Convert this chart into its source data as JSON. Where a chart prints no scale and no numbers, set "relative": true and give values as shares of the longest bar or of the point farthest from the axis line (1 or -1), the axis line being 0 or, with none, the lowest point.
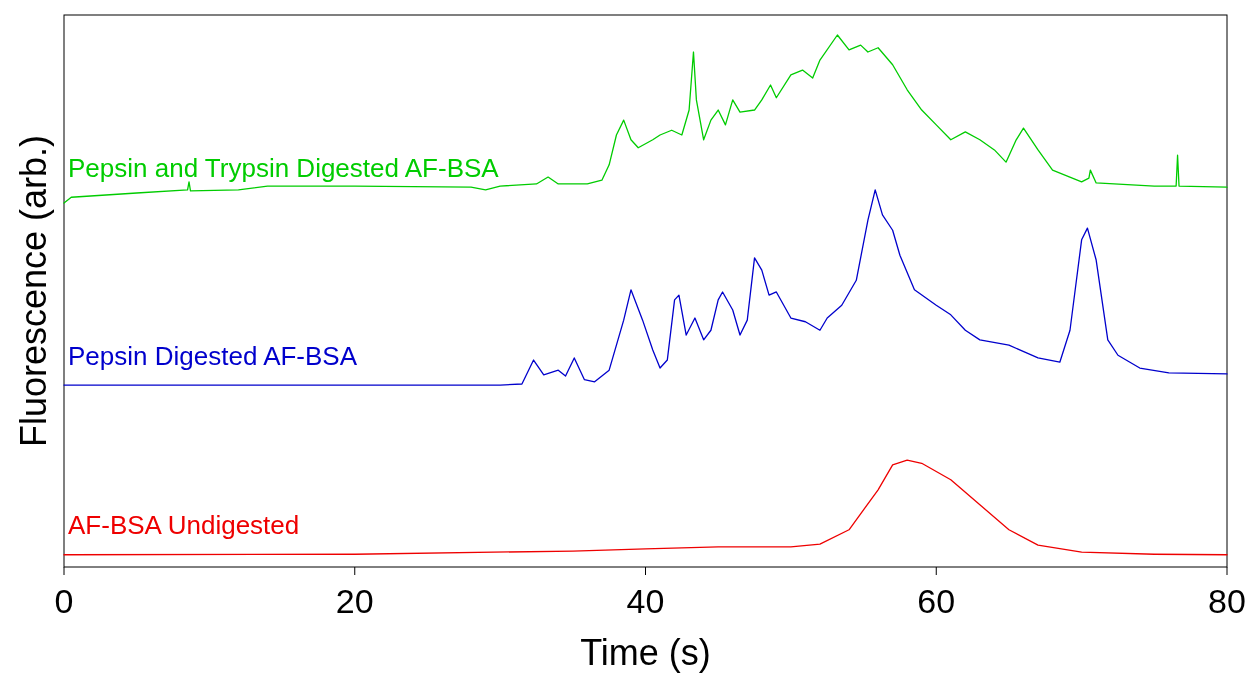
{
  "chart_data": {
    "type": "line",
    "relative": true,
    "xlabel": "Time (s)",
    "ylabel": "Fluorescence (arb.)",
    "xlim": [
      0,
      80
    ],
    "xticks": [
      0,
      20,
      40,
      60,
      80
    ],
    "series": [
      {
        "name": "Pepsin and Trypsin Digested AF-BSA",
        "color": "#00cc00",
        "x": [
          0,
          0.5,
          5,
          8.5,
          8.6,
          8.7,
          12,
          14,
          20,
          28,
          29,
          30,
          32.5,
          33.3,
          34,
          36,
          37,
          37.5,
          38,
          38.5,
          39,
          39.5,
          40.5,
          41,
          41.8,
          42.5,
          43,
          43.3,
          43.5,
          44,
          44.5,
          45,
          45.5,
          46,
          46.5,
          47.5,
          48,
          48.6,
          49,
          50,
          50.8,
          51.5,
          52,
          53.2,
          54,
          54.8,
          55.3,
          56,
          57,
          58,
          59,
          60,
          61,
          62,
          63,
          64,
          64.8,
          65.5,
          66,
          67,
          68,
          70,
          70.5,
          70.6,
          71,
          75,
          76.5,
          76.6,
          76.7,
          80
        ],
        "values": [
          0.684,
          0.695,
          0.703,
          0.709,
          0.724,
          0.707,
          0.709,
          0.716,
          0.716,
          0.714,
          0.709,
          0.716,
          0.72,
          0.733,
          0.72,
          0.72,
          0.727,
          0.756,
          0.812,
          0.84,
          0.803,
          0.788,
          0.803,
          0.812,
          0.821,
          0.812,
          0.859,
          0.968,
          0.878,
          0.803,
          0.84,
          0.859,
          0.831,
          0.878,
          0.855,
          0.859,
          0.878,
          0.906,
          0.882,
          0.925,
          0.934,
          0.919,
          0.953,
          1,
          0.972,
          0.981,
          0.968,
          0.976,
          0.944,
          0.897,
          0.859,
          0.831,
          0.803,
          0.818,
          0.803,
          0.784,
          0.761,
          0.803,
          0.825,
          0.784,
          0.746,
          0.724,
          0.731,
          0.746,
          0.722,
          0.716,
          0.716,
          0.774,
          0.716,
          0.714
        ]
      },
      {
        "name": "Pepsin Digested AF-BSA",
        "color": "#0000cc",
        "x": [
          0,
          30,
          31.5,
          32.3,
          33,
          34,
          34.5,
          35.1,
          35.8,
          36.5,
          37.5,
          38.5,
          39,
          39.8,
          40.5,
          41,
          41.5,
          42,
          42.3,
          42.8,
          43.4,
          44,
          44.5,
          45,
          45.3,
          46,
          46.5,
          47,
          47.5,
          48,
          48.5,
          49,
          50,
          51,
          52,
          52.5,
          53.5,
          54.5,
          55.3,
          55.8,
          56.3,
          57,
          57.5,
          58.5,
          60,
          61,
          62,
          63,
          65,
          67,
          68.5,
          69.2,
          70,
          70.4,
          71,
          71.8,
          72.5,
          74,
          76,
          80
        ],
        "values": [
          0.342,
          0.342,
          0.344,
          0.389,
          0.361,
          0.37,
          0.359,
          0.393,
          0.352,
          0.348,
          0.37,
          0.464,
          0.521,
          0.464,
          0.408,
          0.374,
          0.389,
          0.502,
          0.511,
          0.436,
          0.468,
          0.427,
          0.445,
          0.502,
          0.517,
          0.483,
          0.436,
          0.464,
          0.581,
          0.558,
          0.511,
          0.517,
          0.468,
          0.461,
          0.445,
          0.468,
          0.492,
          0.539,
          0.652,
          0.709,
          0.662,
          0.633,
          0.586,
          0.521,
          0.492,
          0.474,
          0.445,
          0.427,
          0.417,
          0.393,
          0.385,
          0.445,
          0.615,
          0.637,
          0.577,
          0.427,
          0.398,
          0.374,
          0.365,
          0.363
        ]
      },
      {
        "name": "AF-BSA Undigested",
        "color": "#ee0000",
        "x": [
          0,
          20,
          35,
          40,
          45,
          50,
          52,
          54,
          56,
          57,
          58,
          59,
          61,
          63,
          65,
          67,
          70,
          75,
          80
        ],
        "values": [
          0.023,
          0.024,
          0.03,
          0.034,
          0.038,
          0.038,
          0.043,
          0.07,
          0.145,
          0.192,
          0.201,
          0.195,
          0.164,
          0.117,
          0.07,
          0.041,
          0.028,
          0.024,
          0.023
        ]
      }
    ]
  }
}
